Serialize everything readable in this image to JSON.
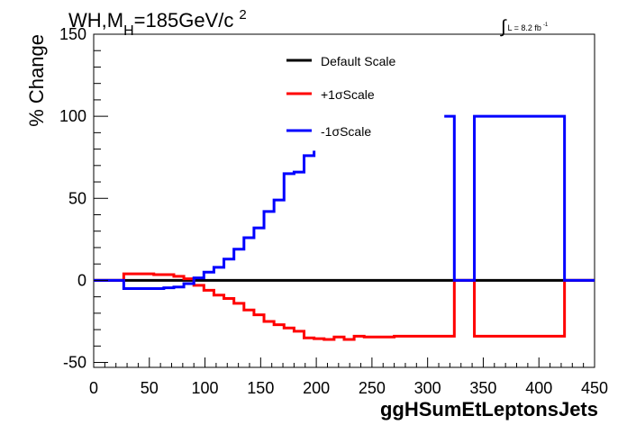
{
  "chart_data": {
    "type": "line",
    "title_parts": {
      "main": "WH,M",
      "subscript": "H",
      "rest": "=185GeV/c",
      "superscript": "2"
    },
    "lumi_parts": {
      "integral": "∫",
      "text": "L = 8.2 fb",
      "superscript": "-1"
    },
    "ylabel": "% Change",
    "xlabel": "ggHSumEtLeptonsJets",
    "xlim": [
      0,
      450
    ],
    "ylim": [
      -53,
      150
    ],
    "x_ticks": [
      0,
      50,
      100,
      150,
      200,
      250,
      300,
      350,
      400,
      450
    ],
    "y_ticks": [
      -50,
      0,
      50,
      100,
      150
    ],
    "x_tick_labels": [
      "0",
      "50",
      "100",
      "150",
      "200",
      "250",
      "300",
      "350",
      "400",
      "450"
    ],
    "y_tick_labels": [
      "-50",
      "0",
      "50",
      "100",
      "150"
    ],
    "legend": {
      "placement": "top-center",
      "entries": [
        {
          "label": "Default Scale",
          "color": "#000000"
        },
        {
          "label": "+1σScale",
          "color": "#ff0000"
        },
        {
          "label": "-1σScale",
          "color": "#0000ff"
        }
      ]
    },
    "series": [
      {
        "name": "Default Scale",
        "color": "#000000",
        "segments": [
          {
            "edges": [
              0,
              450
            ],
            "values": [
              0
            ]
          }
        ]
      },
      {
        "name": "+1σScale",
        "color": "#ff0000",
        "segments": [
          {
            "edges": [
              0,
              27,
              36,
              45,
              54,
              63,
              72,
              81,
              90,
              99,
              108,
              117,
              126,
              135,
              144,
              153,
              162,
              171,
              180,
              189,
              198,
              207,
              216,
              225,
              234,
              243,
              252,
              261,
              270,
              279,
              288,
              297,
              306,
              315,
              324,
              342,
              423,
              450
            ],
            "values": [
              0,
              4,
              4,
              4,
              3.5,
              3.5,
              2.5,
              1,
              -3,
              -6,
              -9,
              -11,
              -14,
              -18,
              -21,
              -25,
              -27,
              -29,
              -31,
              -35,
              -35.5,
              -36,
              -34.5,
              -36,
              -34,
              -34.5,
              -34.5,
              -34.5,
              -34,
              -34,
              -34,
              -34,
              -34,
              -34,
              0,
              -34,
              0
            ]
          }
        ]
      },
      {
        "name": "-1σScale",
        "color": "#0000ff",
        "segments": [
          {
            "edges": [
              0,
              27,
              36,
              45,
              54,
              63,
              72,
              81,
              90,
              99,
              108,
              117,
              126,
              135,
              144,
              153,
              162,
              171,
              180,
              189,
              198
            ],
            "values": [
              0,
              -5,
              -5,
              -5,
              -5,
              -4.5,
              -4,
              -2,
              1.5,
              5,
              8,
              13,
              19,
              26,
              32,
              42,
              49,
              65,
              66,
              76,
              79
            ]
          },
          {
            "edges": [
              315,
              324,
              342,
              423,
              450
            ],
            "values": [
              100,
              0,
              100,
              0
            ]
          }
        ]
      }
    ]
  }
}
